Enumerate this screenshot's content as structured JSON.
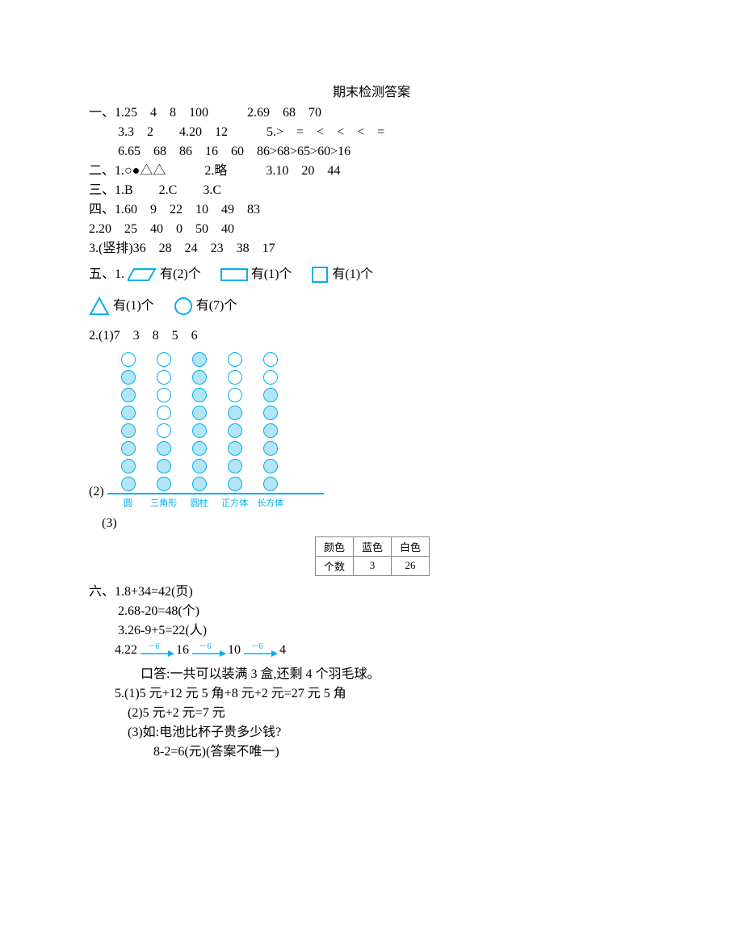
{
  "title": "期末检测答案",
  "sec1": {
    "l1": "一、1.25　4　8　100　　　2.69　68　70",
    "l2": "　　 3.3　2　　4.20　12　　　5.>　=　<　<　<　=",
    "l3": "　　 6.65　68　86　16　60　86>68>65>60>16"
  },
  "sec2": "二、1.○●△△　　　2.略　　　3.10　20　44",
  "sec3": "三、1.B　　2.C　　3.C",
  "sec4": {
    "l1": "四、1.60　9　22　10　49　83",
    "l2": "2.20　25　40　0　50　40",
    "l3": "3.(竖排)36　28　24　23　38　17"
  },
  "sec5": {
    "prefix": "五、1.",
    "shapes": [
      {
        "type": "parallelogram",
        "count": "2"
      },
      {
        "type": "rectangle",
        "count": "1"
      },
      {
        "type": "square",
        "count": "1"
      },
      {
        "type": "triangle",
        "count": "1"
      },
      {
        "type": "circle",
        "count": "7"
      }
    ],
    "you": "有(",
    "ge": ")个",
    "row2_1": "2.(1)7　3　8　5　6",
    "row2_2_label": "(2)",
    "row3_label": "　(3)",
    "chart": {
      "maxRows": 8,
      "columns": [
        {
          "label": "圆",
          "filled": 7
        },
        {
          "label": "三角形",
          "filled": 3
        },
        {
          "label": "圆柱",
          "filled": 8
        },
        {
          "label": "正方体",
          "filled": 5
        },
        {
          "label": "长方体",
          "filled": 6
        }
      ]
    }
  },
  "table3": {
    "headers": [
      "颜色",
      "蓝色",
      "白色"
    ],
    "row": [
      "个数",
      "3",
      "26"
    ]
  },
  "sec6": {
    "l1": "六、1.8+34=42(页)",
    "l2": "　　 2.68-20=48(个)",
    "l3": "　　 3.26-9+5=22(人)",
    "l4_prefix": "　　4.22",
    "steps": [
      "16",
      "10",
      "4"
    ],
    "step_label": "－6",
    "l5": "　　　　口答:一共可以装满 3 盒,还剩 4 个羽毛球。",
    "l6": "　　5.(1)5 元+12 元 5 角+8 元+2 元=27 元 5 角",
    "l7": "　　　(2)5 元+2 元=7 元",
    "l8": "　　　(3)如:电池比杯子贵多少钱?",
    "l9": "　　　　　8-2=6(元)(答案不唯一)"
  },
  "colors": {
    "accent": "#00aeef",
    "fill": "#b3e5f7"
  }
}
